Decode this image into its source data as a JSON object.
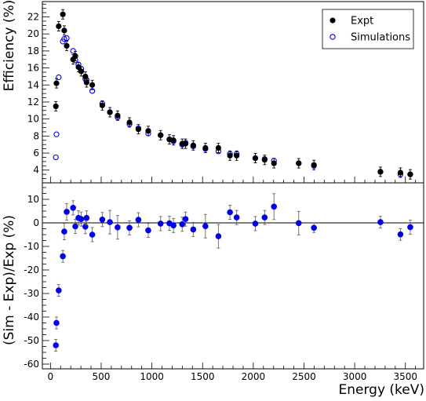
{
  "chart_data": [
    {
      "type": "scatter",
      "ylabel": "Efficiency (%)",
      "xlim": [
        -80,
        3680
      ],
      "ylim": [
        2.5,
        23.8
      ],
      "yticks": [
        4,
        6,
        8,
        10,
        12,
        14,
        16,
        18,
        20,
        22
      ],
      "legend": {
        "position": "top-right",
        "entries": [
          "Expt",
          "Simulations"
        ]
      },
      "series": [
        {
          "name": "Expt",
          "color": "#000000",
          "marker": "filled-circle",
          "x": [
            53,
            59,
            81,
            122,
            136,
            160,
            223,
            245,
            276,
            303,
            344,
            356,
            412,
            511,
            586,
            662,
            779,
            867,
            964,
            1086,
            1173,
            1213,
            1299,
            1332,
            1408,
            1528,
            1656,
            1770,
            1836,
            2020,
            2112,
            2204,
            2448,
            2598,
            3254,
            3451,
            3548
          ],
          "y": [
            11.5,
            14.2,
            20.9,
            22.3,
            20.4,
            18.6,
            17.0,
            17.4,
            16.1,
            15.6,
            15.0,
            14.3,
            14.0,
            11.6,
            10.8,
            10.4,
            9.6,
            8.8,
            8.6,
            8.1,
            7.6,
            7.5,
            7.1,
            7.1,
            6.9,
            6.6,
            6.6,
            5.7,
            5.7,
            5.4,
            5.2,
            4.8,
            4.8,
            4.6,
            3.8,
            3.7,
            3.5
          ]
        },
        {
          "name": "Simulations",
          "color": "#0000ee",
          "marker": "open-circle",
          "x": [
            53,
            59,
            81,
            122,
            136,
            160,
            223,
            245,
            276,
            303,
            344,
            356,
            412,
            511,
            586,
            662,
            779,
            867,
            964,
            1086,
            1173,
            1213,
            1299,
            1332,
            1408,
            1528,
            1656,
            1770,
            1836,
            2020,
            2112,
            2204,
            2448,
            2598,
            3254,
            3451,
            3548
          ],
          "y": [
            5.5,
            8.2,
            14.9,
            19.1,
            19.4,
            19.5,
            18.0,
            16.9,
            16.4,
            15.9,
            14.7,
            14.6,
            13.3,
            11.8,
            10.8,
            10.2,
            9.4,
            8.9,
            8.3,
            8.1,
            7.6,
            7.4,
            7.0,
            7.2,
            6.8,
            6.5,
            6.2,
            5.9,
            5.9,
            5.4,
            5.3,
            5.1,
            4.8,
            4.5,
            3.8,
            3.5,
            3.5
          ]
        }
      ]
    },
    {
      "type": "scatter",
      "xlabel": "Energy (keV)",
      "ylabel": "(Sim - Exp)/Exp (%)",
      "xlim": [
        -80,
        3680
      ],
      "ylim": [
        -62,
        17
      ],
      "xticks": [
        0,
        500,
        1000,
        1500,
        2000,
        2500,
        3000,
        3500
      ],
      "yticks": [
        -60,
        -50,
        -40,
        -30,
        -20,
        -10,
        0,
        10
      ],
      "reference_line": 0,
      "series": [
        {
          "color": "#0000ee",
          "marker": "filled-circle",
          "x": [
            53,
            59,
            81,
            122,
            136,
            160,
            223,
            245,
            276,
            303,
            344,
            356,
            412,
            511,
            586,
            662,
            779,
            867,
            964,
            1086,
            1173,
            1213,
            1299,
            1332,
            1408,
            1528,
            1656,
            1770,
            1836,
            2020,
            2112,
            2204,
            2448,
            2598,
            3254,
            3451,
            3548
          ],
          "y": [
            -52,
            -42.5,
            -28.7,
            -14.2,
            -3.7,
            4.7,
            6.4,
            -1.5,
            2.1,
            1.6,
            -1.6,
            2.1,
            -5.0,
            1.4,
            0.3,
            -1.9,
            -2.1,
            1.3,
            -3.2,
            -0.3,
            -0.2,
            -1.1,
            -0.6,
            1.6,
            -2.8,
            -1.4,
            -5.7,
            4.5,
            2.3,
            -0.3,
            2.3,
            6.9,
            -0.1,
            -2.1,
            0.3,
            -4.9,
            -1.8
          ],
          "error": [
            2.5,
            2.5,
            2.5,
            2.5,
            3.5,
            3.5,
            3.0,
            3.0,
            3.0,
            3.0,
            3.0,
            3.0,
            3.0,
            3.0,
            5.0,
            5.0,
            3.0,
            3.0,
            3.0,
            3.0,
            3.0,
            3.0,
            3.0,
            3.0,
            3.0,
            5.0,
            5.0,
            3.0,
            3.0,
            3.0,
            3.0,
            5.5,
            5.0,
            2.0,
            2.5,
            2.5,
            3.0
          ]
        }
      ]
    }
  ]
}
